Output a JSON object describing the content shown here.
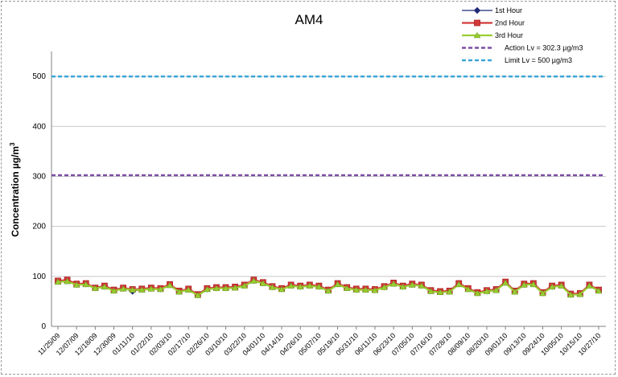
{
  "chart_data": {
    "type": "line",
    "title": "AM4",
    "xlabel": "",
    "ylabel": "Concentration µg/m³",
    "ylabel_main": "Concentration µg/m",
    "ylabel_sup": "3",
    "ylim": [
      0,
      550
    ],
    "yticks": [
      0,
      100,
      200,
      300,
      400,
      500
    ],
    "grid": "horizontal",
    "legend_position": "top-right",
    "x_tick_labels": [
      "11/25/09",
      "12/07/09",
      "12/18/09",
      "12/30/09",
      "01/11/10",
      "01/22/10",
      "02/03/10",
      "02/17/10",
      "02/26/10",
      "03/10/10",
      "03/22/10",
      "04/01/10",
      "04/14/10",
      "04/26/10",
      "05/07/10",
      "05/19/10",
      "05/31/10",
      "06/11/10",
      "06/23/10",
      "07/05/10",
      "07/16/10",
      "07/28/10",
      "08/09/10",
      "08/20/10",
      "09/01/10",
      "09/13/10",
      "09/24/10",
      "10/05/10",
      "10/15/10",
      "10/27/10"
    ],
    "samples_per_tick": 2,
    "series": [
      {
        "name": "1st Hour",
        "color": "#1f2a78",
        "marker": "diamond",
        "values": [
          90,
          91,
          84,
          85,
          77,
          80,
          72,
          76,
          70,
          74,
          76,
          75,
          83,
          70,
          74,
          63,
          75,
          77,
          77,
          78,
          82,
          92,
          87,
          79,
          75,
          82,
          80,
          82,
          80,
          72,
          85,
          77,
          74,
          74,
          73,
          79,
          86,
          80,
          84,
          82,
          71,
          69,
          70,
          85,
          75,
          67,
          71,
          73,
          88,
          70,
          84,
          85,
          67,
          80,
          82,
          64,
          65,
          82,
          72
        ]
      },
      {
        "name": "2nd Hour",
        "color": "#d23a3a",
        "marker": "square",
        "values": [
          91,
          93,
          85,
          86,
          77,
          81,
          73,
          77,
          74,
          75,
          77,
          76,
          84,
          71,
          75,
          64,
          76,
          78,
          78,
          79,
          83,
          93,
          88,
          80,
          76,
          83,
          81,
          83,
          81,
          73,
          86,
          78,
          75,
          75,
          74,
          80,
          87,
          81,
          85,
          83,
          72,
          70,
          71,
          86,
          76,
          68,
          72,
          74,
          89,
          71,
          85,
          86,
          68,
          81,
          83,
          65,
          66,
          83,
          73
        ]
      },
      {
        "name": "3rd Hour",
        "color": "#9acd32",
        "marker": "triangle",
        "values": [
          89,
          90,
          83,
          84,
          76,
          79,
          71,
          75,
          73,
          73,
          75,
          74,
          82,
          69,
          73,
          62,
          74,
          76,
          76,
          77,
          81,
          91,
          86,
          78,
          74,
          81,
          79,
          81,
          79,
          71,
          84,
          76,
          73,
          73,
          72,
          78,
          85,
          79,
          83,
          81,
          70,
          68,
          69,
          84,
          74,
          66,
          70,
          72,
          87,
          69,
          83,
          84,
          66,
          79,
          81,
          63,
          64,
          81,
          71
        ]
      },
      {
        "name": "Action Lv = 302.3 µg/m3",
        "color": "#7b4fa5",
        "constant": 302.3,
        "style": "dashed"
      },
      {
        "name": "Limit Lv = 500 µg/m3",
        "color": "#3aa6d8",
        "constant": 500,
        "style": "dashed"
      }
    ]
  }
}
